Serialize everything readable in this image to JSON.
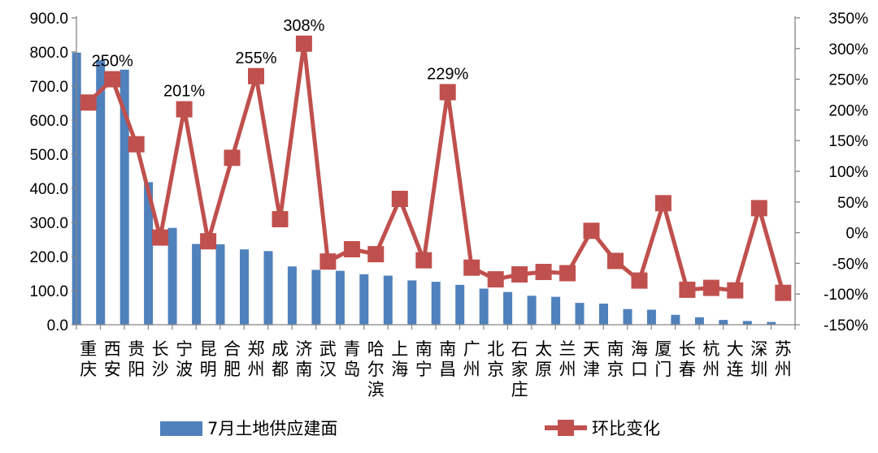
{
  "chart_data": {
    "type": "bar+line",
    "categories": [
      {
        "key": "重庆",
        "lines": [
          "重",
          "庆"
        ]
      },
      {
        "key": "西安",
        "lines": [
          "西",
          "安"
        ]
      },
      {
        "key": "贵阳",
        "lines": [
          "贵",
          "阳"
        ]
      },
      {
        "key": "长沙",
        "lines": [
          "长",
          "沙"
        ]
      },
      {
        "key": "宁波",
        "lines": [
          "宁",
          "波"
        ]
      },
      {
        "key": "昆明",
        "lines": [
          "昆",
          "明"
        ]
      },
      {
        "key": "合肥",
        "lines": [
          "合",
          "肥"
        ]
      },
      {
        "key": "郑州",
        "lines": [
          "郑",
          "州"
        ]
      },
      {
        "key": "成都",
        "lines": [
          "成",
          "都"
        ]
      },
      {
        "key": "济南",
        "lines": [
          "济",
          "南"
        ]
      },
      {
        "key": "武汉",
        "lines": [
          "武",
          "汉"
        ]
      },
      {
        "key": "青岛",
        "lines": [
          "青",
          "岛"
        ]
      },
      {
        "key": "哈尔滨",
        "lines": [
          "哈",
          "尔",
          "滨"
        ]
      },
      {
        "key": "上海",
        "lines": [
          "上",
          "海"
        ]
      },
      {
        "key": "南宁",
        "lines": [
          "南",
          "宁"
        ]
      },
      {
        "key": "南昌",
        "lines": [
          "南",
          "昌"
        ]
      },
      {
        "key": "广州",
        "lines": [
          "广",
          "州"
        ]
      },
      {
        "key": "北京",
        "lines": [
          "北",
          "京"
        ]
      },
      {
        "key": "石家庄",
        "lines": [
          "石",
          "家",
          "庄"
        ]
      },
      {
        "key": "太原",
        "lines": [
          "太",
          "原"
        ]
      },
      {
        "key": "兰州",
        "lines": [
          "兰",
          "州"
        ]
      },
      {
        "key": "天津",
        "lines": [
          "天",
          "津"
        ]
      },
      {
        "key": "南京",
        "lines": [
          "南",
          "京"
        ]
      },
      {
        "key": "海口",
        "lines": [
          "海",
          "口"
        ]
      },
      {
        "key": "厦门",
        "lines": [
          "厦",
          "门"
        ]
      },
      {
        "key": "长春",
        "lines": [
          "长",
          "春"
        ]
      },
      {
        "key": "杭州",
        "lines": [
          "杭",
          "州"
        ]
      },
      {
        "key": "大连",
        "lines": [
          "大",
          "连"
        ]
      },
      {
        "key": "深圳",
        "lines": [
          "深",
          "圳"
        ]
      },
      {
        "key": "苏州",
        "lines": [
          "苏",
          "州"
        ]
      }
    ],
    "series": [
      {
        "name": "7月土地供应建面",
        "type": "bar",
        "axis": "left",
        "color": "#4F81BD",
        "values": [
          798,
          776,
          748,
          418,
          284,
          237,
          236,
          221,
          216,
          171,
          161,
          158,
          148,
          144,
          130,
          126,
          117,
          106,
          96,
          85,
          82,
          64,
          62,
          46,
          44,
          29,
          22,
          14,
          11,
          8
        ]
      },
      {
        "name": "环比变化",
        "type": "line",
        "axis": "right",
        "color": "#C0504D",
        "values": [
          212,
          250,
          144,
          -8,
          201,
          -14,
          122,
          255,
          22,
          308,
          -47,
          -27,
          -35,
          55,
          -45,
          229,
          -57,
          -76,
          -68,
          -64,
          -66,
          3,
          -46,
          -78,
          48,
          -93,
          -90,
          -94,
          40,
          -98
        ]
      }
    ],
    "left_axis": {
      "min": 0,
      "max": 900,
      "step": 100,
      "tick_labels": [
        "0.0",
        "100.0",
        "200.0",
        "300.0",
        "400.0",
        "500.0",
        "600.0",
        "700.0",
        "800.0",
        "900.0"
      ]
    },
    "right_axis": {
      "min": -150,
      "max": 350,
      "step": 50,
      "tick_labels": [
        "-150%",
        "-100%",
        "-50%",
        "0%",
        "50%",
        "100%",
        "150%",
        "200%",
        "250%",
        "300%",
        "350%"
      ]
    },
    "annotations": [
      {
        "index": 1,
        "text": "250%"
      },
      {
        "index": 4,
        "text": "201%"
      },
      {
        "index": 7,
        "text": "255%"
      },
      {
        "index": 9,
        "text": "308%"
      },
      {
        "index": 15,
        "text": "229%"
      }
    ],
    "legend": {
      "placement": "bottom",
      "bar_label": "7月土地供应建面",
      "line_label": "环比变化"
    },
    "grid": false
  }
}
